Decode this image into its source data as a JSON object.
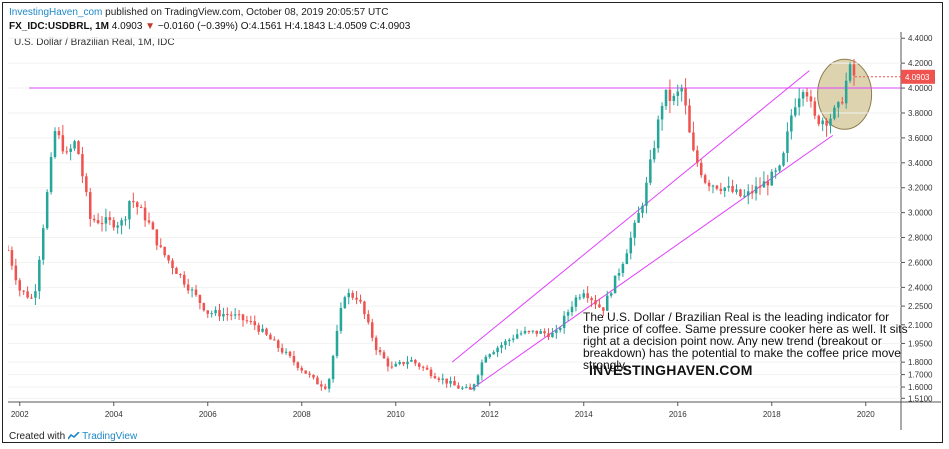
{
  "header": {
    "brand": "InvestingHaven_com",
    "published_text": " published on TradingView.com, October 08, 2019 20:05:57 UTC",
    "symbol": "FX_IDC:USDBRL, 1M",
    "last": "4.0903",
    "change_arrow": "▼",
    "change": "−0.0160 (−0.39%)",
    "ohlc": "O:4.1561 H:4.1843 L:4.0509 C:4.0903"
  },
  "chart_data": {
    "type": "candlestick",
    "title": "U.S. Dollar / Brazilian Real, 1M, IDC",
    "y_ticks": [
      "4.4000",
      "4.2000",
      "4.0000",
      "3.8000",
      "3.6000",
      "3.4000",
      "3.2000",
      "3.0000",
      "2.8000",
      "2.6000",
      "2.4000",
      "2.2500",
      "2.1000",
      "1.9500",
      "1.8000",
      "1.7000",
      "1.6000",
      "1.5100"
    ],
    "x_ticks": [
      "2002",
      "2004",
      "2006",
      "2008",
      "2010",
      "2012",
      "2014",
      "2016",
      "2018",
      "2020"
    ],
    "ylim": [
      1.48,
      4.45
    ],
    "xlim": [
      2001.75,
      2020.75
    ],
    "last_price_label": "4.0903",
    "resistance_level": 4.0,
    "channel_lower": [
      [
        2011.6,
        1.58
      ],
      [
        2019.3,
        3.62
      ]
    ],
    "channel_upper": [
      [
        2011.2,
        1.8
      ],
      [
        2018.8,
        4.14
      ]
    ],
    "highlight": {
      "x": 2019.55,
      "y": 3.95
    },
    "series": [
      {
        "date": 2001.75,
        "value": 2.7
      },
      {
        "date": 2002.0,
        "value": 2.38
      },
      {
        "date": 2002.3,
        "value": 2.3
      },
      {
        "date": 2002.5,
        "value": 2.9
      },
      {
        "date": 2002.75,
        "value": 3.65
      },
      {
        "date": 2002.9,
        "value": 3.55
      },
      {
        "date": 2003.0,
        "value": 3.45
      },
      {
        "date": 2003.2,
        "value": 3.58
      },
      {
        "date": 2003.5,
        "value": 2.95
      },
      {
        "date": 2003.9,
        "value": 2.92
      },
      {
        "date": 2004.2,
        "value": 2.92
      },
      {
        "date": 2004.35,
        "value": 3.12
      },
      {
        "date": 2004.7,
        "value": 2.95
      },
      {
        "date": 2005.0,
        "value": 2.7
      },
      {
        "date": 2005.5,
        "value": 2.45
      },
      {
        "date": 2006.0,
        "value": 2.2
      },
      {
        "date": 2006.5,
        "value": 2.18
      },
      {
        "date": 2007.0,
        "value": 2.1
      },
      {
        "date": 2007.5,
        "value": 1.92
      },
      {
        "date": 2007.9,
        "value": 1.78
      },
      {
        "date": 2008.3,
        "value": 1.64
      },
      {
        "date": 2008.55,
        "value": 1.6
      },
      {
        "date": 2008.9,
        "value": 2.35
      },
      {
        "date": 2009.2,
        "value": 2.32
      },
      {
        "date": 2009.6,
        "value": 1.9
      },
      {
        "date": 2009.9,
        "value": 1.75
      },
      {
        "date": 2010.3,
        "value": 1.82
      },
      {
        "date": 2010.8,
        "value": 1.7
      },
      {
        "date": 2011.3,
        "value": 1.6
      },
      {
        "date": 2011.6,
        "value": 1.57
      },
      {
        "date": 2011.9,
        "value": 1.86
      },
      {
        "date": 2012.3,
        "value": 1.95
      },
      {
        "date": 2012.6,
        "value": 2.03
      },
      {
        "date": 2013.0,
        "value": 2.04
      },
      {
        "date": 2013.4,
        "value": 2.02
      },
      {
        "date": 2013.8,
        "value": 2.3
      },
      {
        "date": 2014.0,
        "value": 2.38
      },
      {
        "date": 2014.4,
        "value": 2.22
      },
      {
        "date": 2014.8,
        "value": 2.58
      },
      {
        "date": 2015.1,
        "value": 2.9
      },
      {
        "date": 2015.3,
        "value": 3.15
      },
      {
        "date": 2015.7,
        "value": 3.95
      },
      {
        "date": 2015.9,
        "value": 3.9
      },
      {
        "date": 2016.1,
        "value": 4.0
      },
      {
        "date": 2016.3,
        "value": 3.5
      },
      {
        "date": 2016.6,
        "value": 3.25
      },
      {
        "date": 2017.0,
        "value": 3.2
      },
      {
        "date": 2017.4,
        "value": 3.12
      },
      {
        "date": 2017.9,
        "value": 3.25
      },
      {
        "date": 2018.2,
        "value": 3.35
      },
      {
        "date": 2018.45,
        "value": 3.85
      },
      {
        "date": 2018.7,
        "value": 4.05
      },
      {
        "date": 2018.9,
        "value": 3.75
      },
      {
        "date": 2019.2,
        "value": 3.75
      },
      {
        "date": 2019.45,
        "value": 3.85
      },
      {
        "date": 2019.65,
        "value": 4.15
      },
      {
        "date": 2019.77,
        "value": 4.09
      }
    ]
  },
  "annotation": "The U.S. Dollar / Brazilian Real is the leading indicator for the price of coffee. Same pressure cooker here as well. It sits right at a decision point now. Any new trend (breakout or breakdown) has the potential to make the coffee price move strongly.",
  "watermark": "INVESTINGHAVEN.COM",
  "footer": {
    "created_with": "Created with",
    "tradingview": "TradingView"
  },
  "colors": {
    "up": "#26a69a",
    "down": "#ef5350",
    "trendline": "#e040fb",
    "highlight": "#c8b67a",
    "price_label": "#ef5350"
  }
}
